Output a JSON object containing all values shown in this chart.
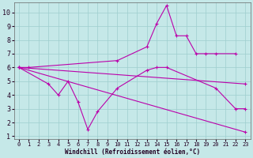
{
  "xlabel": "Windchill (Refroidissement éolien,°C)",
  "background_color": "#c5e8e8",
  "grid_color": "#9ecece",
  "line_color": "#bb00aa",
  "xlim": [
    -0.5,
    23.5
  ],
  "ylim": [
    0.8,
    10.7
  ],
  "yticks": [
    1,
    2,
    3,
    4,
    5,
    6,
    7,
    8,
    9,
    10
  ],
  "xticks": [
    0,
    1,
    2,
    3,
    4,
    5,
    6,
    7,
    8,
    9,
    10,
    11,
    12,
    13,
    14,
    15,
    16,
    17,
    18,
    19,
    20,
    21,
    22,
    23
  ],
  "lines": [
    {
      "x": [
        0,
        1,
        10,
        13,
        14,
        15,
        16,
        17,
        18,
        19,
        20,
        22
      ],
      "y": [
        6.0,
        6.0,
        6.5,
        7.5,
        9.2,
        10.5,
        8.3,
        8.3,
        7.0,
        7.0,
        7.0,
        7.0
      ]
    },
    {
      "x": [
        0,
        3,
        4,
        5,
        6,
        7,
        8,
        10,
        13,
        14,
        15,
        20,
        22,
        23
      ],
      "y": [
        6.0,
        4.8,
        4.0,
        5.0,
        3.5,
        1.5,
        2.8,
        4.5,
        5.8,
        6.0,
        6.0,
        4.5,
        3.0,
        3.0
      ]
    },
    {
      "x": [
        0,
        23
      ],
      "y": [
        6.0,
        4.8
      ]
    },
    {
      "x": [
        0,
        23
      ],
      "y": [
        6.0,
        1.3
      ]
    }
  ]
}
